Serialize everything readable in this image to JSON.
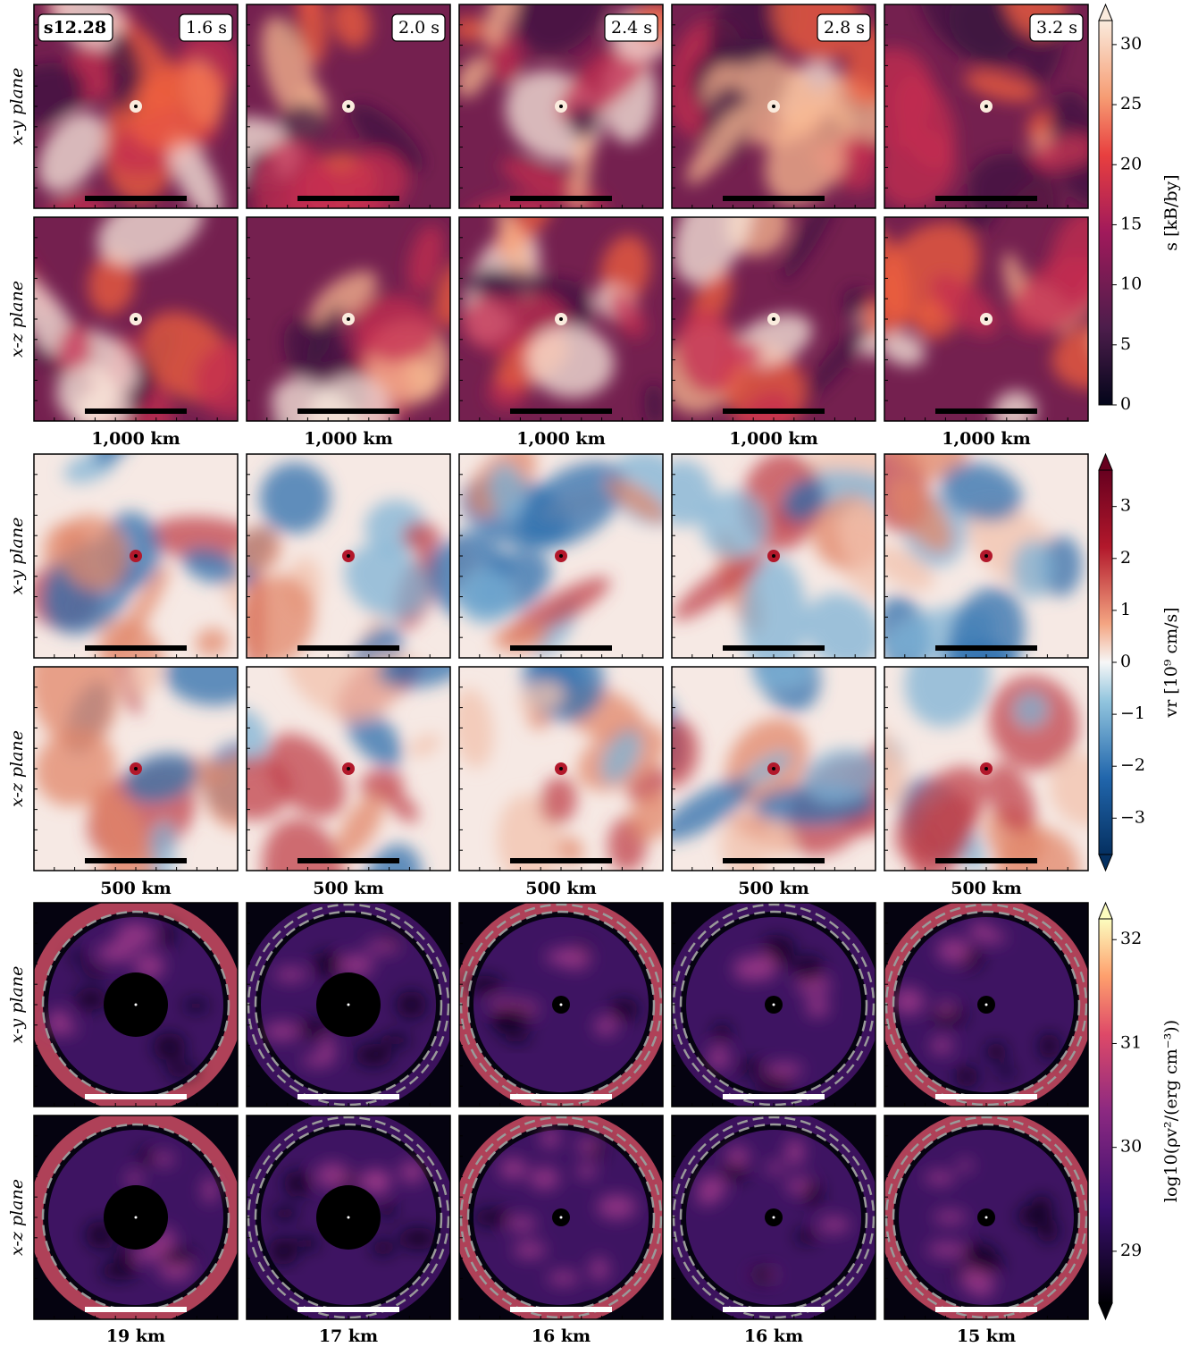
{
  "model": "s12.28",
  "times": [
    "1.6 s",
    "2.0 s",
    "2.4 s",
    "2.8 s",
    "3.2 s"
  ],
  "row_labels": [
    "x-y plane",
    "x-z plane"
  ],
  "groups": [
    {
      "scale_labels": [
        "1,000 km",
        "1,000 km",
        "1,000 km",
        "1,000 km",
        "1,000 km"
      ],
      "colorbar": {
        "label": "s [kB/by]",
        "lim": [
          0,
          32
        ],
        "ticks": [
          0,
          5,
          10,
          15,
          20,
          25,
          30
        ]
      }
    },
    {
      "scale_labels": [
        "500 km",
        "500 km",
        "500 km",
        "500 km",
        "500 km"
      ],
      "colorbar": {
        "label": "vr [10⁹ cm/s]",
        "lim": [
          -3.7,
          3.7
        ],
        "ticks": [
          {
            "value": -3,
            "label": "−3"
          },
          {
            "value": -2,
            "label": "−2"
          },
          {
            "value": -1,
            "label": "−1"
          },
          0,
          1,
          2,
          3
        ]
      }
    },
    {
      "scale_labels": [
        "19 km",
        "17 km",
        "16 km",
        "16 km",
        "15 km"
      ],
      "colorbar": {
        "label": "log10(ρv²/(erg cm⁻³))",
        "lim": [
          28.5,
          32.2
        ],
        "ticks": [
          29,
          30,
          31,
          32
        ]
      }
    }
  ]
}
